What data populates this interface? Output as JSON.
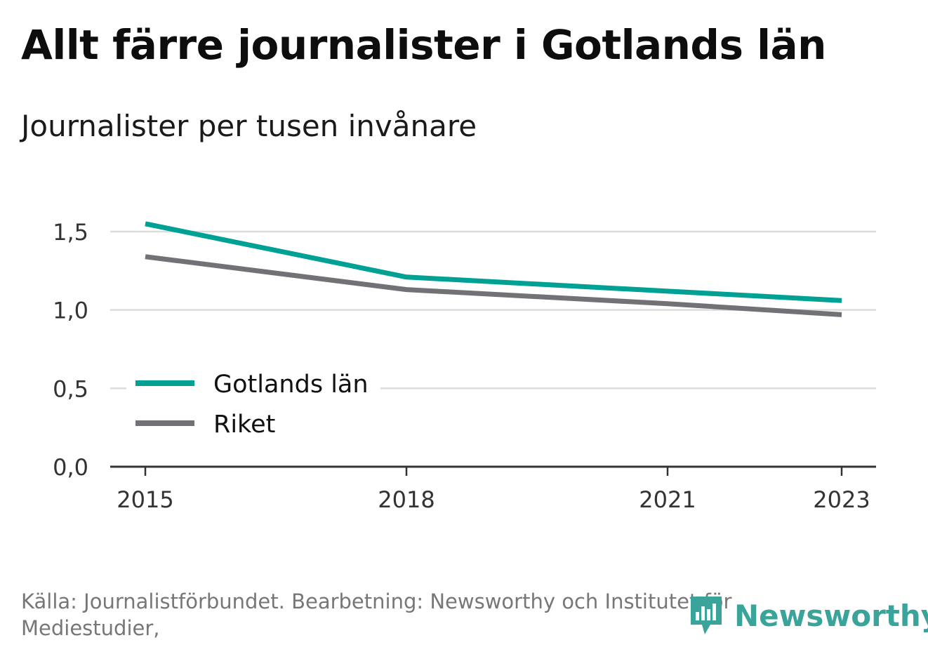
{
  "chart_data": {
    "type": "line",
    "title": "Allt färre journalister i Gotlands län",
    "subtitle": "Journalister per tusen invånare",
    "x": [
      2015,
      2018,
      2021,
      2023
    ],
    "x_ticks": [
      "2015",
      "2018",
      "2021",
      "2023"
    ],
    "xlim": [
      2015,
      2023
    ],
    "ylim": [
      0,
      1.5
    ],
    "y_ticks": [
      {
        "value": 0.0,
        "label": "0,0"
      },
      {
        "value": 0.5,
        "label": "0,5"
      },
      {
        "value": 1.0,
        "label": "1,0"
      },
      {
        "value": 1.5,
        "label": "1,5"
      }
    ],
    "grid": true,
    "legend_position": "bottom-left",
    "series": [
      {
        "name": "Gotlands län",
        "color": "#00a195",
        "values": [
          1.55,
          1.21,
          1.12,
          1.06
        ]
      },
      {
        "name": "Riket",
        "color": "#727276",
        "values": [
          1.34,
          1.13,
          1.04,
          0.97
        ]
      }
    ]
  },
  "source": {
    "text": "Källa: Journalistförbundet. Bearbetning: Newsworthy och Institutet för Mediestudier,"
  },
  "brand": {
    "name": "Newsworthy",
    "icon": "newsworthy-logo-icon",
    "color": "#3aa39a"
  }
}
